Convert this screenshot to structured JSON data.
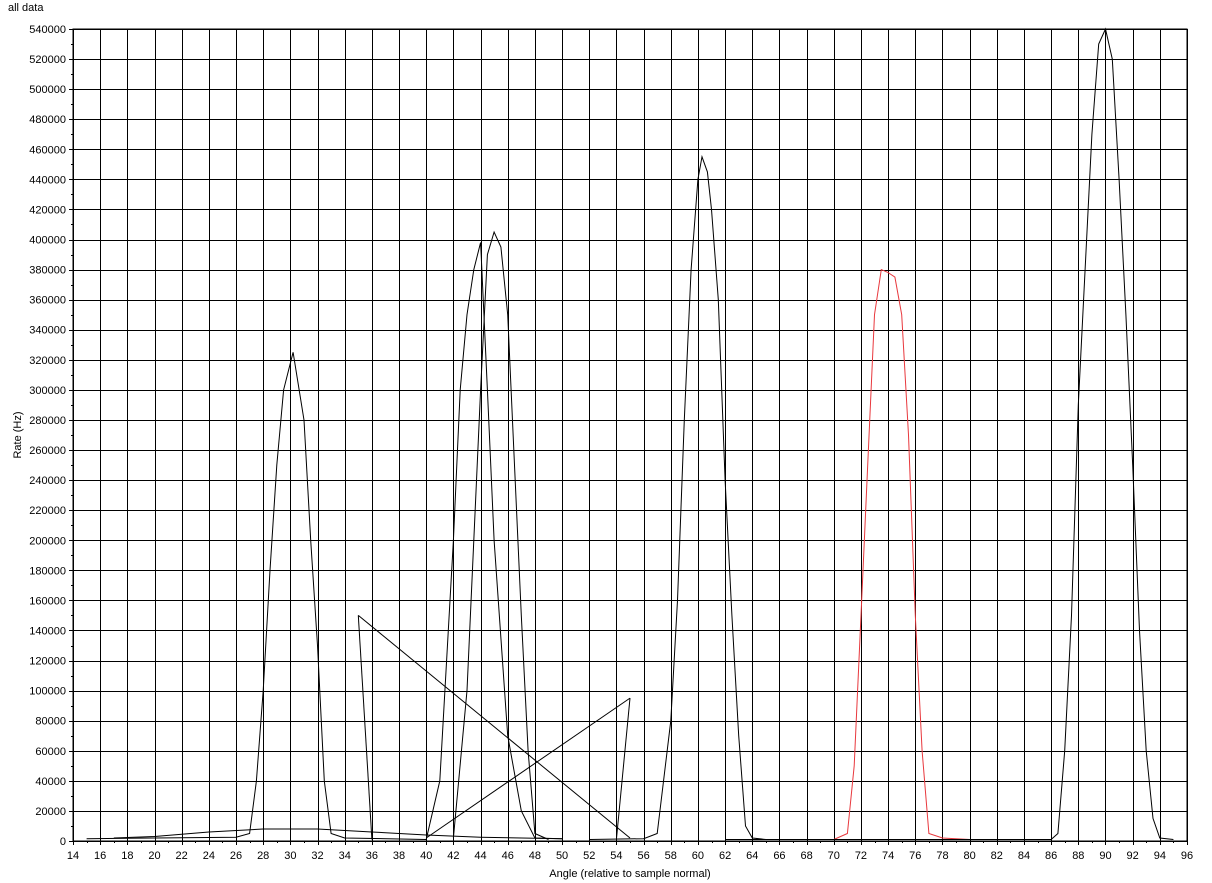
{
  "chart_data": {
    "type": "line",
    "title": "all data",
    "xlabel": "Angle (relative to sample normal)",
    "ylabel": "Rate (Hz)",
    "xlim": [
      14,
      96
    ],
    "ylim": [
      0,
      540000
    ],
    "x_ticks": [
      14,
      16,
      18,
      20,
      22,
      24,
      26,
      28,
      30,
      32,
      34,
      36,
      38,
      40,
      42,
      44,
      46,
      48,
      50,
      52,
      54,
      56,
      58,
      60,
      62,
      64,
      66,
      68,
      70,
      72,
      74,
      76,
      78,
      80,
      82,
      84,
      86,
      88,
      90,
      92,
      94,
      96
    ],
    "y_ticks": [
      0,
      20000,
      40000,
      60000,
      80000,
      100000,
      120000,
      140000,
      160000,
      180000,
      200000,
      220000,
      240000,
      260000,
      280000,
      300000,
      320000,
      340000,
      360000,
      380000,
      400000,
      420000,
      440000,
      460000,
      480000,
      500000,
      520000,
      540000
    ],
    "grid": true,
    "series": [
      {
        "color": "#000000",
        "points": [
          [
            15,
            1500
          ],
          [
            20,
            2000
          ],
          [
            26,
            2500
          ],
          [
            27,
            5000
          ],
          [
            27.5,
            40000
          ],
          [
            28,
            100000
          ],
          [
            28.5,
            180000
          ],
          [
            29,
            250000
          ],
          [
            29.5,
            300000
          ],
          [
            30.2,
            325000
          ],
          [
            31,
            280000
          ],
          [
            31.5,
            200000
          ],
          [
            32,
            130000
          ],
          [
            32.5,
            40000
          ],
          [
            33,
            5000
          ],
          [
            34,
            2000
          ],
          [
            40,
            1000
          ]
        ]
      },
      {
        "color": "#000000",
        "points": [
          [
            17,
            2000
          ],
          [
            20,
            3000
          ],
          [
            24,
            6000
          ],
          [
            28,
            8000
          ],
          [
            32,
            8000
          ],
          [
            36,
            6000
          ],
          [
            40,
            4000
          ],
          [
            44,
            2500
          ],
          [
            50,
            1500
          ]
        ]
      },
      {
        "color": "#000000",
        "points": [
          [
            35,
            150000
          ],
          [
            36,
            1000
          ]
        ]
      },
      {
        "color": "#000000",
        "points": [
          [
            35,
            150000
          ],
          [
            55,
            2000
          ]
        ]
      },
      {
        "color": "#000000",
        "points": [
          [
            40,
            1000
          ],
          [
            41,
            40000
          ],
          [
            42,
            200000
          ],
          [
            42.5,
            300000
          ],
          [
            43,
            350000
          ],
          [
            43.5,
            380000
          ],
          [
            44,
            398000
          ],
          [
            44.5,
            300000
          ],
          [
            45,
            200000
          ],
          [
            46,
            70000
          ],
          [
            47,
            20000
          ],
          [
            48,
            2000
          ],
          [
            50,
            1500
          ]
        ]
      },
      {
        "color": "#000000",
        "points": [
          [
            40,
            2000
          ],
          [
            55,
            95000
          ]
        ]
      },
      {
        "color": "#000000",
        "points": [
          [
            42,
            2000
          ],
          [
            43,
            100000
          ],
          [
            43.5,
            200000
          ],
          [
            44,
            300000
          ],
          [
            44.5,
            390000
          ],
          [
            45,
            405000
          ],
          [
            45.5,
            395000
          ],
          [
            46,
            350000
          ],
          [
            46.5,
            250000
          ],
          [
            47,
            150000
          ],
          [
            47.5,
            60000
          ],
          [
            48,
            5000
          ],
          [
            49,
            1000
          ]
        ]
      },
      {
        "color": "#000000",
        "points": [
          [
            54,
            1000
          ],
          [
            55,
            95000
          ]
        ]
      },
      {
        "color": "#000000",
        "points": [
          [
            52,
            1000
          ],
          [
            56,
            1500
          ],
          [
            57,
            5000
          ],
          [
            58,
            80000
          ],
          [
            58.5,
            160000
          ],
          [
            59,
            280000
          ],
          [
            59.5,
            380000
          ],
          [
            60,
            440000
          ],
          [
            60.3,
            455000
          ],
          [
            60.7,
            445000
          ],
          [
            61,
            420000
          ],
          [
            61.5,
            360000
          ],
          [
            62,
            240000
          ],
          [
            62.5,
            150000
          ],
          [
            63,
            70000
          ],
          [
            63.5,
            10000
          ],
          [
            64,
            2000
          ],
          [
            65,
            1000
          ]
        ]
      },
      {
        "color": "#e8383d",
        "points": [
          [
            70,
            1000
          ],
          [
            71,
            5000
          ],
          [
            71.5,
            50000
          ],
          [
            72,
            150000
          ],
          [
            72.5,
            250000
          ],
          [
            73,
            350000
          ],
          [
            73.5,
            380000
          ],
          [
            74,
            378000
          ],
          [
            74.5,
            375000
          ],
          [
            75,
            350000
          ],
          [
            75.5,
            270000
          ],
          [
            76,
            150000
          ],
          [
            76.5,
            60000
          ],
          [
            77,
            5000
          ],
          [
            78,
            2000
          ],
          [
            80,
            1000
          ]
        ]
      },
      {
        "color": "#000000",
        "points": [
          [
            62,
            1000
          ],
          [
            70,
            1000
          ],
          [
            86,
            1000
          ],
          [
            86.5,
            5000
          ],
          [
            87,
            60000
          ],
          [
            87.5,
            150000
          ],
          [
            88,
            290000
          ],
          [
            88.5,
            380000
          ],
          [
            89,
            470000
          ],
          [
            89.5,
            530000
          ],
          [
            90,
            540000
          ],
          [
            90.5,
            520000
          ],
          [
            91,
            440000
          ],
          [
            91.5,
            350000
          ],
          [
            92,
            250000
          ],
          [
            92.5,
            140000
          ],
          [
            93,
            60000
          ],
          [
            93.5,
            15000
          ],
          [
            94,
            2000
          ],
          [
            95,
            1000
          ]
        ]
      }
    ]
  }
}
